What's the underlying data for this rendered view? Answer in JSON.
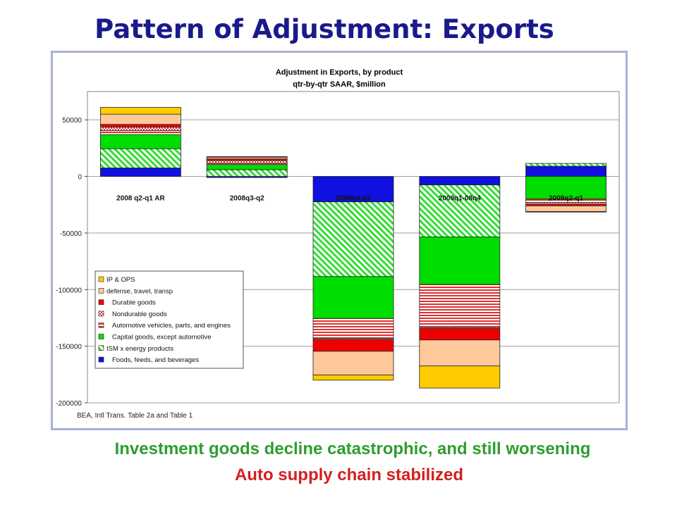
{
  "slide": {
    "title": "Pattern of Adjustment: Exports",
    "caption_green": "Investment goods decline catastrophic, and still worsening",
    "caption_red": "Auto supply chain stabilized"
  },
  "colors": {
    "title": "#1a1a8c",
    "frame": "#a9b0d9",
    "caption_green": "#2e9e2e",
    "caption_red": "#d42020"
  },
  "chart_data": {
    "type": "bar",
    "stacked": true,
    "title": "Adjustment in Exports, by product",
    "subtitle": "qtr-by-qtr SAAR, $million",
    "source_note": "BEA, Intl Trans. Table 2a and Table 1",
    "categories": [
      "2008 q2-q1 AR",
      "2008q3-q2",
      "2008q4-q3",
      "2009q1-08q4",
      "2009q2-q1"
    ],
    "ylim": [
      -200000,
      75000
    ],
    "yticks": [
      50000,
      0,
      -50000,
      -100000,
      -150000,
      -200000
    ],
    "ytick_labels": [
      "50000",
      "0",
      "-50000",
      "-100000",
      "-150000",
      "-200000"
    ],
    "grid": "horizontal",
    "legend_position": "bottom-left",
    "series": [
      {
        "name": "Foods, feeds, and beverages",
        "color": "#1010e0",
        "pattern": "solid",
        "values": [
          7500,
          -1000,
          -22500,
          -7500,
          9000
        ]
      },
      {
        "name": "ISM x energy products",
        "color": "#33dd33",
        "pattern": "diagonal",
        "values": [
          17000,
          6000,
          -66000,
          -46000,
          2500
        ]
      },
      {
        "name": "Capital goods, except automotive",
        "color": "#00dd00",
        "pattern": "solid",
        "values": [
          12500,
          4500,
          -37000,
          -42000,
          -20000
        ]
      },
      {
        "name": "Automotive vehicles, parts, and engines",
        "color": "#e03030",
        "pattern": "hstripe",
        "values": [
          3500,
          1000,
          -17500,
          -38000,
          -3000
        ]
      },
      {
        "name": "Nondurable goods",
        "color": "#e03030",
        "pattern": "dots",
        "values": [
          3000,
          2500,
          -1000,
          -1000,
          -1500
        ]
      },
      {
        "name": "Durable goods",
        "color": "#ee0000",
        "pattern": "solid",
        "values": [
          2500,
          1500,
          -10500,
          -10000,
          -1500
        ]
      },
      {
        "name": "defense, travel, transp",
        "color": "#ffc89a",
        "pattern": "solid",
        "values": [
          9000,
          1500,
          -21000,
          -23000,
          -5000
        ]
      },
      {
        "name": "IP & OPS",
        "color": "#ffcc00",
        "pattern": "solid",
        "values": [
          6000,
          500,
          -4500,
          -19500,
          -500
        ]
      }
    ],
    "legend_order": [
      "IP & OPS",
      "defense, travel, transp",
      "Durable goods",
      "Nondurable goods",
      "Automotive vehicles, parts, and engines",
      "Capital goods, except automotive",
      "ISM x energy products",
      "Foods, feeds, and beverages"
    ]
  }
}
